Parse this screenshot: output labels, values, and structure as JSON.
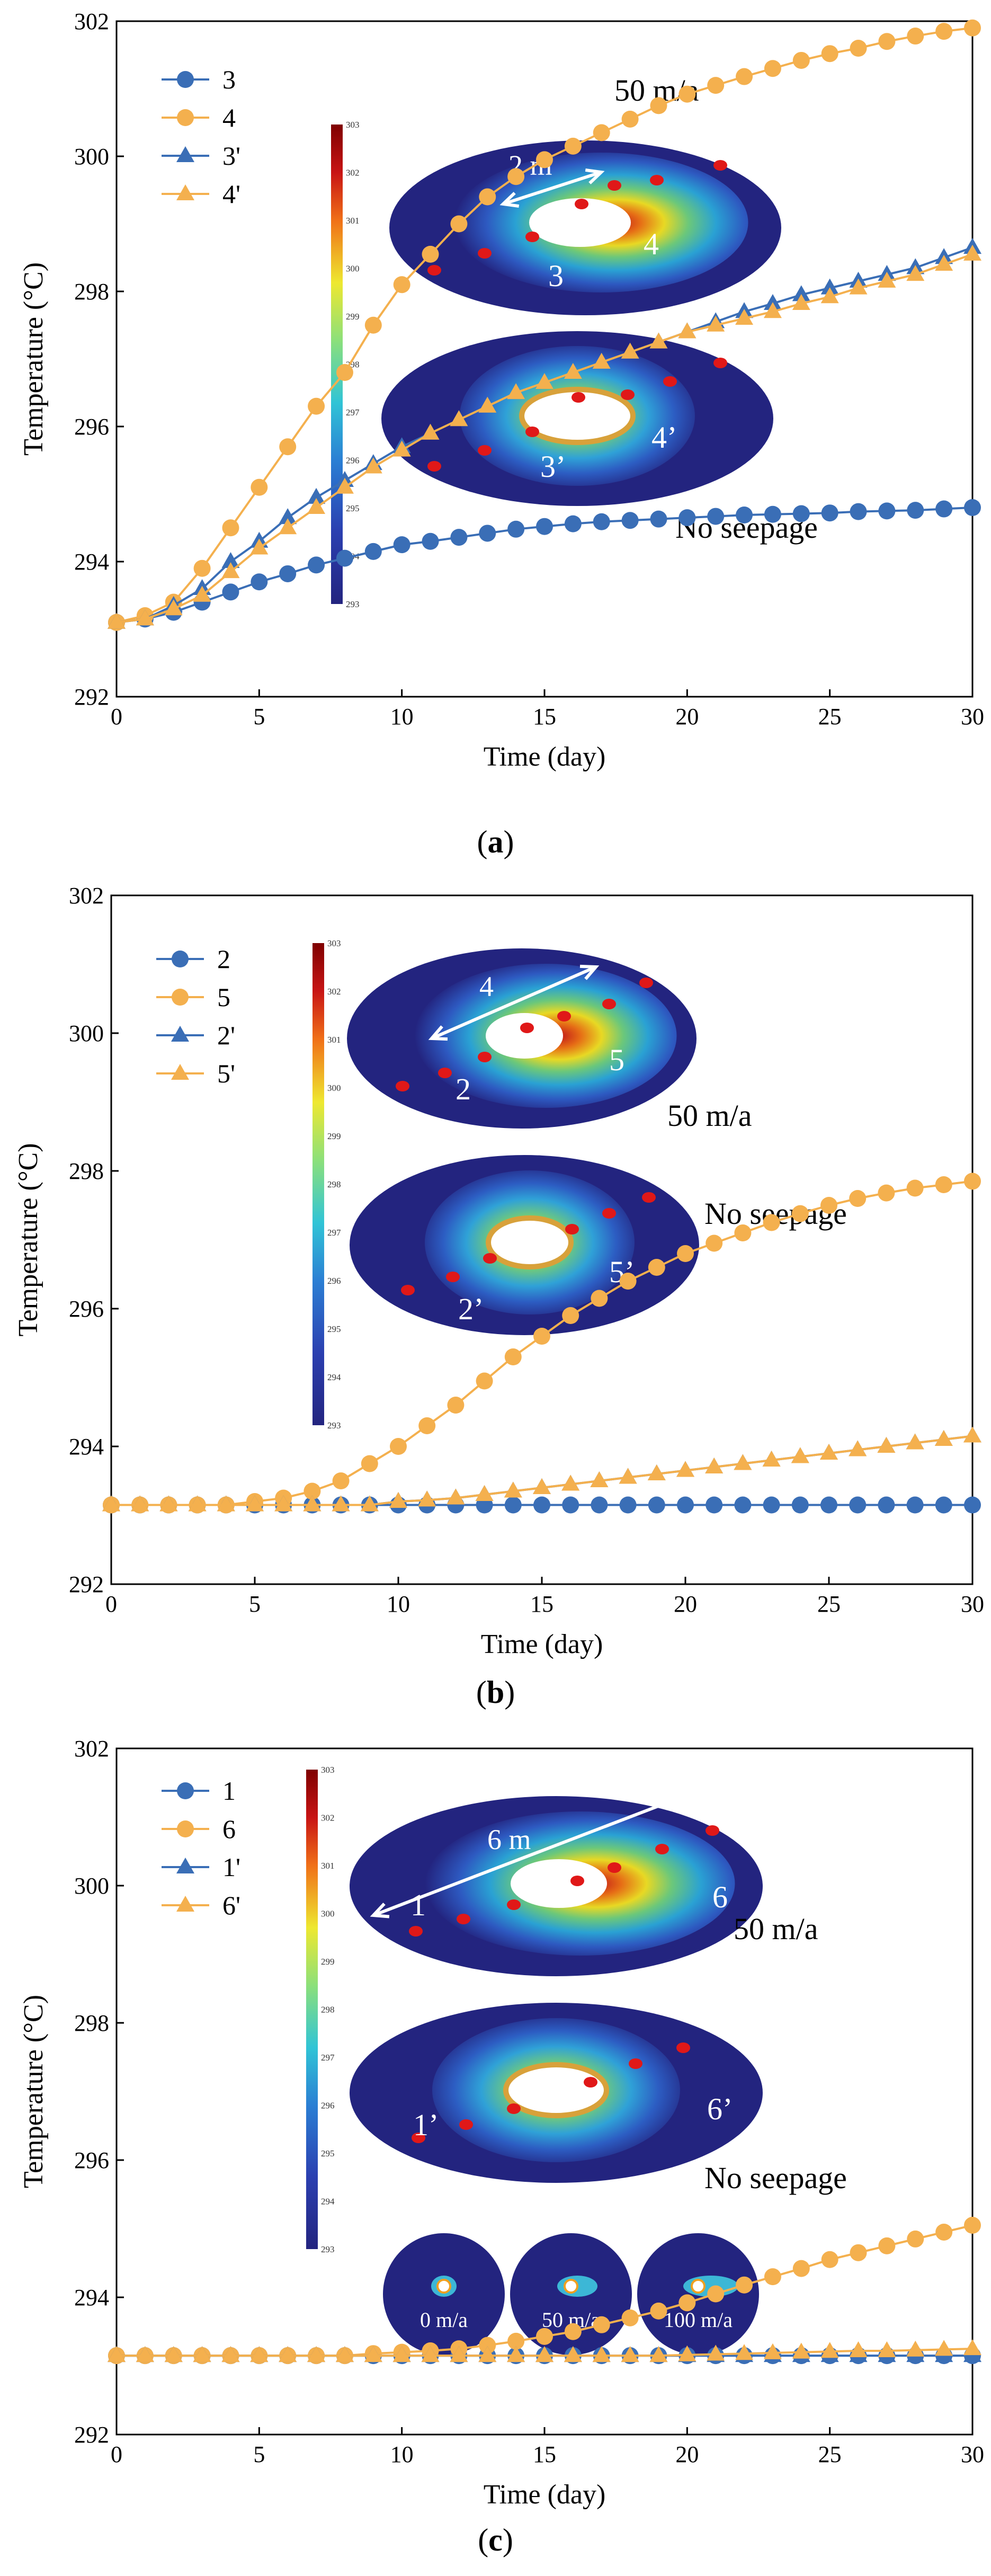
{
  "colors": {
    "blue": "#3a6eb6",
    "orange": "#f4b04e",
    "heat_low": "#23247f",
    "heat_high": "#7f0000",
    "hole": "#ffffff",
    "ring": "#d8a13a"
  },
  "colorbar_ticks": [
    "303",
    "302",
    "301",
    "300",
    "299",
    "298",
    "297",
    "296",
    "295",
    "294",
    "293"
  ],
  "chart_data": [
    {
      "type": "line",
      "panel": "a",
      "panel_label_open": "(",
      "panel_label_letter": "a",
      "panel_label_close": ")",
      "xlabel": "Time (day)",
      "ylabel": "Temperature (°C)",
      "xlim": [
        0,
        30
      ],
      "ylim": [
        292,
        302
      ],
      "xticks": [
        0,
        5,
        10,
        15,
        20,
        25,
        30
      ],
      "yticks": [
        292,
        294,
        296,
        298,
        300,
        302
      ],
      "x": [
        0,
        1,
        2,
        3,
        4,
        5,
        6,
        7,
        8,
        9,
        10,
        11,
        12,
        13,
        14,
        15,
        16,
        17,
        18,
        19,
        20,
        21,
        22,
        23,
        24,
        25,
        26,
        27,
        28,
        29,
        30
      ],
      "series": [
        {
          "name": "3",
          "marker": "circle",
          "color": "blue",
          "values": [
            293.1,
            293.15,
            293.25,
            293.4,
            293.55,
            293.7,
            293.82,
            293.95,
            294.05,
            294.15,
            294.25,
            294.3,
            294.36,
            294.42,
            294.48,
            294.52,
            294.56,
            294.59,
            294.61,
            294.63,
            294.65,
            294.67,
            294.69,
            294.7,
            294.71,
            294.72,
            294.74,
            294.75,
            294.76,
            294.78,
            294.8
          ]
        },
        {
          "name": "4",
          "marker": "circle",
          "color": "orange",
          "values": [
            293.1,
            293.2,
            293.4,
            293.9,
            294.5,
            295.1,
            295.7,
            296.3,
            296.8,
            297.5,
            298.1,
            298.55,
            299.0,
            299.4,
            299.7,
            299.95,
            300.15,
            300.35,
            300.55,
            300.75,
            300.92,
            301.05,
            301.18,
            301.3,
            301.42,
            301.52,
            301.6,
            301.7,
            301.78,
            301.85,
            301.9
          ]
        },
        {
          "name": "3'",
          "marker": "triangle",
          "color": "blue",
          "values": [
            293.1,
            293.15,
            293.35,
            293.6,
            294.0,
            294.3,
            294.65,
            294.95,
            295.2,
            295.45,
            295.7,
            295.9,
            296.1,
            296.3,
            296.5,
            296.65,
            296.8,
            296.95,
            297.1,
            297.25,
            297.4,
            297.55,
            297.7,
            297.82,
            297.95,
            298.05,
            298.15,
            298.25,
            298.35,
            298.5,
            298.65
          ]
        },
        {
          "name": "4'",
          "marker": "triangle",
          "color": "orange",
          "values": [
            293.1,
            293.15,
            293.3,
            293.5,
            293.85,
            294.2,
            294.5,
            294.8,
            295.1,
            295.4,
            295.65,
            295.9,
            296.1,
            296.3,
            296.5,
            296.65,
            296.8,
            296.95,
            297.1,
            297.25,
            297.4,
            297.5,
            297.6,
            297.7,
            297.82,
            297.92,
            298.05,
            298.15,
            298.25,
            298.4,
            298.55
          ]
        }
      ],
      "annotations": {
        "top_speed": "50 m/a",
        "distance": "2 m",
        "label_left_top": "3",
        "label_right_top": "4",
        "label_left_bottom": "3’",
        "label_right_bottom": "4’",
        "bottom_note": "No seepage"
      }
    },
    {
      "type": "line",
      "panel": "b",
      "panel_label_open": "(",
      "panel_label_letter": "b",
      "panel_label_close": ")",
      "xlabel": "Time (day)",
      "ylabel": "Temperature (°C)",
      "xlim": [
        0,
        30
      ],
      "ylim": [
        292,
        302
      ],
      "xticks": [
        0,
        5,
        10,
        15,
        20,
        25,
        30
      ],
      "yticks": [
        292,
        294,
        296,
        298,
        300,
        302
      ],
      "x": [
        0,
        1,
        2,
        3,
        4,
        5,
        6,
        7,
        8,
        9,
        10,
        11,
        12,
        13,
        14,
        15,
        16,
        17,
        18,
        19,
        20,
        21,
        22,
        23,
        24,
        25,
        26,
        27,
        28,
        29,
        30
      ],
      "series": [
        {
          "name": "2",
          "marker": "circle",
          "color": "blue",
          "values": [
            293.15,
            293.15,
            293.15,
            293.15,
            293.15,
            293.15,
            293.15,
            293.15,
            293.15,
            293.15,
            293.15,
            293.15,
            293.15,
            293.15,
            293.15,
            293.15,
            293.15,
            293.15,
            293.15,
            293.15,
            293.15,
            293.15,
            293.15,
            293.15,
            293.15,
            293.15,
            293.15,
            293.15,
            293.15,
            293.15,
            293.15
          ]
        },
        {
          "name": "5",
          "marker": "circle",
          "color": "orange",
          "values": [
            293.15,
            293.15,
            293.15,
            293.15,
            293.15,
            293.2,
            293.25,
            293.35,
            293.5,
            293.75,
            294.0,
            294.3,
            294.6,
            294.95,
            295.3,
            295.6,
            295.9,
            296.15,
            296.4,
            296.6,
            296.8,
            296.95,
            297.1,
            297.25,
            297.38,
            297.5,
            297.6,
            297.68,
            297.75,
            297.8,
            297.85
          ]
        },
        {
          "name": "2'",
          "marker": "triangle",
          "color": "blue",
          "values": [
            293.15,
            293.15,
            293.15,
            293.15,
            293.15,
            293.15,
            293.15,
            293.15,
            293.15,
            293.15,
            293.2,
            293.22,
            293.25,
            293.3,
            293.35,
            293.4,
            293.45,
            293.5,
            293.55,
            293.6,
            293.65,
            293.7,
            293.75,
            293.8,
            293.85,
            293.9,
            293.95,
            294.0,
            294.05,
            294.1,
            294.15
          ]
        },
        {
          "name": "5'",
          "marker": "triangle",
          "color": "orange",
          "values": [
            293.15,
            293.15,
            293.15,
            293.15,
            293.15,
            293.15,
            293.15,
            293.15,
            293.15,
            293.15,
            293.2,
            293.22,
            293.25,
            293.3,
            293.35,
            293.4,
            293.45,
            293.5,
            293.55,
            293.6,
            293.65,
            293.7,
            293.75,
            293.8,
            293.85,
            293.9,
            293.95,
            294.0,
            294.05,
            294.1,
            294.15
          ]
        }
      ],
      "annotations": {
        "top_speed": "50 m/a",
        "distance": "4",
        "label_left_top": "2",
        "label_right_top": "5",
        "label_left_bottom": "2’",
        "label_right_bottom": "5’",
        "bottom_note": "No seepage"
      }
    },
    {
      "type": "line",
      "panel": "c",
      "panel_label_open": "(",
      "panel_label_letter": "c",
      "panel_label_close": ")",
      "xlabel": "Time (day)",
      "ylabel": "Temperature (°C)",
      "xlim": [
        0,
        30
      ],
      "ylim": [
        292,
        302
      ],
      "xticks": [
        0,
        5,
        10,
        15,
        20,
        25,
        30
      ],
      "yticks": [
        292,
        294,
        296,
        298,
        300,
        302
      ],
      "x": [
        0,
        1,
        2,
        3,
        4,
        5,
        6,
        7,
        8,
        9,
        10,
        11,
        12,
        13,
        14,
        15,
        16,
        17,
        18,
        19,
        20,
        21,
        22,
        23,
        24,
        25,
        26,
        27,
        28,
        29,
        30
      ],
      "series": [
        {
          "name": "1",
          "marker": "circle",
          "color": "blue",
          "values": [
            293.15,
            293.15,
            293.15,
            293.15,
            293.15,
            293.15,
            293.15,
            293.15,
            293.15,
            293.15,
            293.15,
            293.15,
            293.15,
            293.15,
            293.15,
            293.15,
            293.15,
            293.15,
            293.15,
            293.15,
            293.15,
            293.15,
            293.15,
            293.15,
            293.15,
            293.15,
            293.15,
            293.15,
            293.15,
            293.15,
            293.15
          ]
        },
        {
          "name": "6",
          "marker": "circle",
          "color": "orange",
          "values": [
            293.15,
            293.15,
            293.15,
            293.15,
            293.15,
            293.15,
            293.15,
            293.15,
            293.15,
            293.18,
            293.2,
            293.22,
            293.25,
            293.3,
            293.36,
            293.43,
            293.5,
            293.6,
            293.7,
            293.8,
            293.92,
            294.05,
            294.18,
            294.3,
            294.42,
            294.55,
            294.65,
            294.75,
            294.85,
            294.95,
            295.05
          ]
        },
        {
          "name": "1'",
          "marker": "triangle",
          "color": "blue",
          "values": [
            293.15,
            293.15,
            293.15,
            293.15,
            293.15,
            293.15,
            293.15,
            293.15,
            293.15,
            293.15,
            293.15,
            293.15,
            293.15,
            293.15,
            293.15,
            293.15,
            293.15,
            293.15,
            293.15,
            293.15,
            293.15,
            293.15,
            293.15,
            293.15,
            293.15,
            293.15,
            293.15,
            293.15,
            293.15,
            293.15,
            293.15
          ]
        },
        {
          "name": "6'",
          "marker": "triangle",
          "color": "orange",
          "values": [
            293.15,
            293.15,
            293.15,
            293.15,
            293.15,
            293.15,
            293.15,
            293.15,
            293.15,
            293.15,
            293.15,
            293.15,
            293.15,
            293.15,
            293.15,
            293.15,
            293.15,
            293.15,
            293.15,
            293.15,
            293.16,
            293.17,
            293.18,
            293.19,
            293.2,
            293.21,
            293.22,
            293.22,
            293.23,
            293.24,
            293.25
          ]
        }
      ],
      "annotations": {
        "top_speed": "50 m/a",
        "distance": "6 m",
        "label_left_top": "1",
        "label_right_top": "6",
        "label_left_bottom": "1’",
        "label_right_bottom": "6’",
        "bottom_note": "No seepage",
        "small_speeds": [
          "0 m/a",
          "50 m/a",
          "100 m/a"
        ]
      }
    }
  ]
}
